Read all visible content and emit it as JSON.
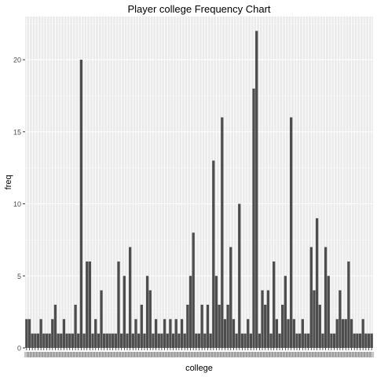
{
  "chart_data": {
    "type": "bar",
    "title": "Player college Frequency Chart",
    "xlabel": "college",
    "ylabel": "freq",
    "ylim": [
      0,
      23
    ],
    "yticks": [
      0,
      5,
      10,
      15,
      20
    ],
    "grid": true,
    "values": [
      2,
      2,
      1,
      1,
      1,
      2,
      1,
      1,
      1,
      2,
      3,
      1,
      1,
      2,
      1,
      1,
      1,
      3,
      1,
      20,
      1,
      6,
      6,
      1,
      2,
      1,
      4,
      1,
      1,
      1,
      1,
      1,
      6,
      1,
      5,
      1,
      7,
      1,
      2,
      1,
      3,
      1,
      5,
      4,
      1,
      2,
      1,
      1,
      2,
      1,
      2,
      1,
      2,
      1,
      2,
      1,
      3,
      5,
      8,
      1,
      1,
      3,
      1,
      3,
      1,
      13,
      5,
      3,
      16,
      2,
      3,
      7,
      2,
      1,
      10,
      1,
      1,
      2,
      1,
      18,
      22,
      1,
      4,
      3,
      4,
      1,
      6,
      2,
      1,
      3,
      5,
      2,
      16,
      2,
      1,
      1,
      2,
      1,
      1,
      7,
      4,
      9,
      3,
      1,
      7,
      5,
      1,
      1,
      2,
      4,
      2,
      2,
      6,
      2,
      1,
      1,
      1,
      2,
      1,
      1,
      1
    ],
    "colors": {
      "bar": "#4d4d4d",
      "panel": "#ebebeb",
      "grid_major": "#ffffff",
      "grid_minor": "#f5f5f5",
      "axis_text": "#4d4d4d",
      "title": "#000000"
    }
  }
}
